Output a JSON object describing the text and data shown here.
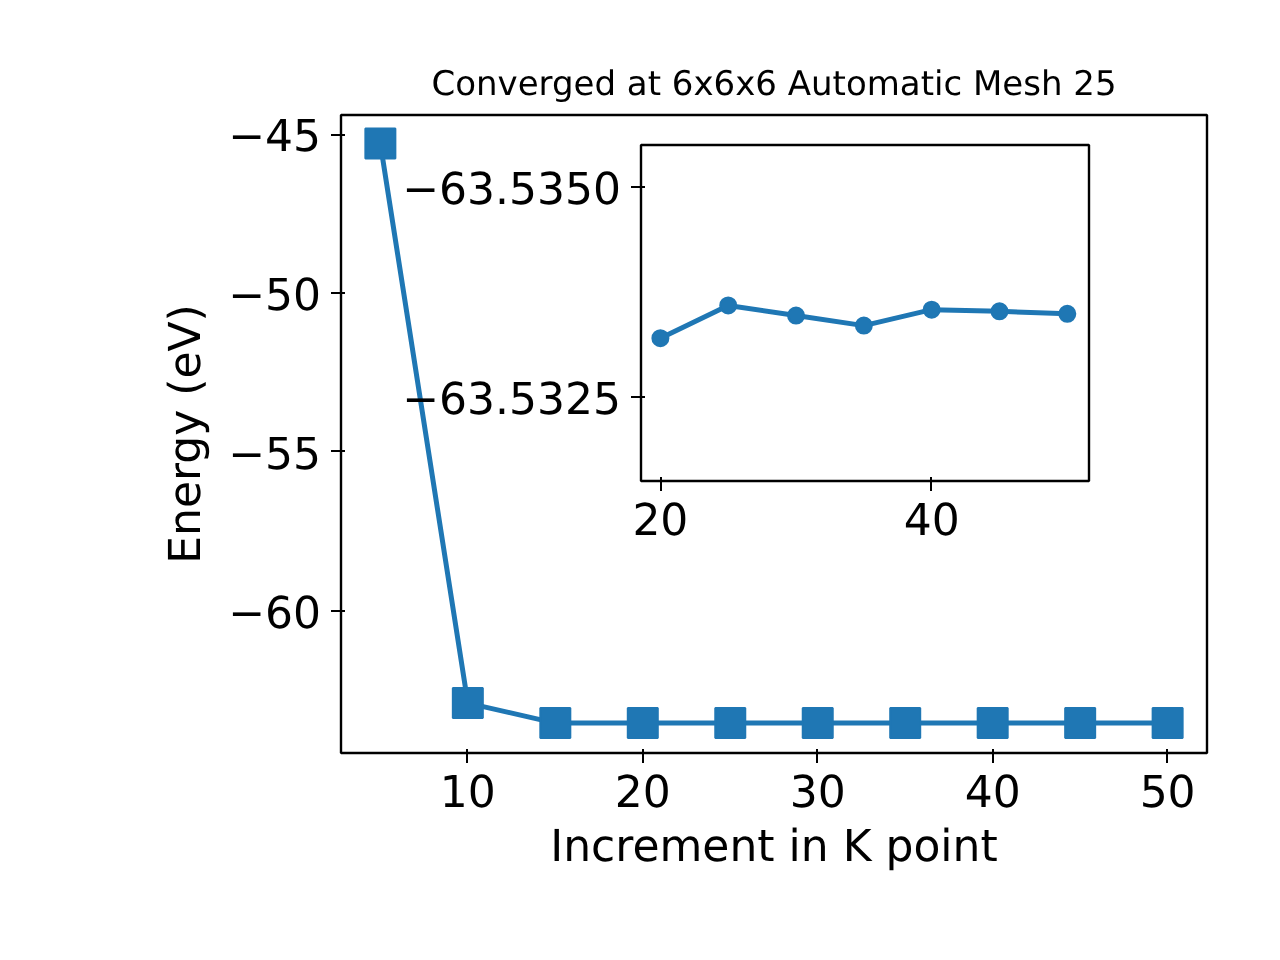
{
  "chart_data": [
    {
      "type": "line",
      "title": "Converged at 6x6x6 Automatic Mesh 25",
      "xlabel": "Increment in K point",
      "ylabel": "Energy (eV)",
      "x": [
        5,
        10,
        15,
        20,
        25,
        30,
        35,
        40,
        45,
        50
      ],
      "series": [
        {
          "color": "#1f77b4",
          "values": [
            -45.3,
            -62.9,
            -63.53,
            -63.53,
            -63.53,
            -63.53,
            -63.53,
            -63.53,
            -63.53,
            -63.53
          ]
        }
      ],
      "marker": "square",
      "line_style": "solid",
      "grid": false,
      "xlim": [
        2.75,
        52.25
      ],
      "ylim": [
        -64.47,
        -44.4
      ],
      "xticks": [
        10,
        20,
        30,
        40,
        50
      ],
      "yticks": [
        {
          "value": -45,
          "label": "−45"
        },
        {
          "value": -50,
          "label": "−50"
        },
        {
          "value": -55,
          "label": "−55"
        },
        {
          "value": -60,
          "label": "−60"
        }
      ]
    },
    {
      "type": "line",
      "x": [
        20,
        25,
        30,
        35,
        40,
        45,
        50
      ],
      "series": [
        {
          "color": "#1f77b4",
          "values": [
            -63.5332,
            -63.53359,
            -63.53347,
            -63.53335,
            -63.53354,
            -63.53352,
            -63.53349
          ]
        }
      ],
      "marker": "circle",
      "line_style": "solid",
      "grid": false,
      "xlim": [
        18.57,
        51.6
      ],
      "ylim": [
        -63.5315,
        -63.5355
      ],
      "xticks": [
        20,
        40
      ],
      "yticks": [
        {
          "value": -63.535,
          "label": "−63.5350"
        },
        {
          "value": -63.5325,
          "label": "−63.5325"
        }
      ]
    }
  ]
}
